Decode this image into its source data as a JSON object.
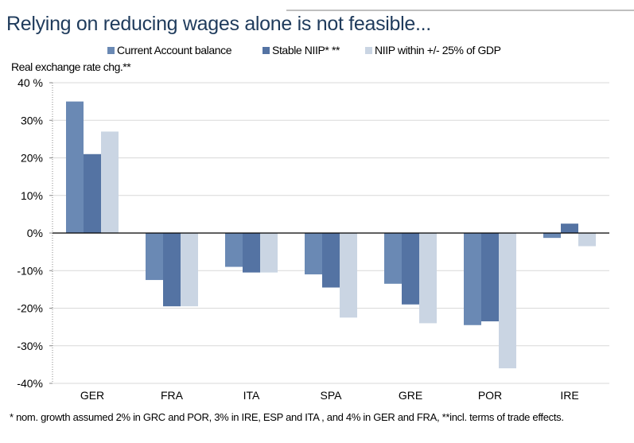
{
  "title": "Relying on reducing wages alone is not feasible...",
  "footnote": "* nom. growth assumed 2% in GRC and POR, 3% in IRE, ESP and ITA , and 4% in GER and FRA, **incl. terms of trade effects.",
  "chart_data": {
    "type": "bar",
    "ylabel": "Real exchange rate chg.**",
    "categories": [
      "GER",
      "FRA",
      "ITA",
      "SPA",
      "GRE",
      "POR",
      "IRE"
    ],
    "series": [
      {
        "name": "Current Account balance",
        "color": "#6a89b4",
        "values": [
          35,
          -12.5,
          -9,
          -11,
          -13.5,
          -24.5,
          -1.3
        ]
      },
      {
        "name": "Stable NIIP* **",
        "color": "#5473a3",
        "values": [
          21,
          -19.5,
          -10.5,
          -14.5,
          -19,
          -23.5,
          2.5
        ]
      },
      {
        "name": "NIIP within +/- 25% of GDP",
        "color": "#cad5e3",
        "values": [
          27,
          -19.5,
          -10.5,
          -22.5,
          -24,
          -36,
          -3.5
        ]
      }
    ],
    "ylim": [
      -40,
      40
    ],
    "yticks": [
      "40 %",
      "30%",
      "20%",
      "10%",
      "0%",
      "-10%",
      "-20%",
      "-30%",
      "-40%"
    ],
    "grid": true,
    "legend": "top"
  }
}
